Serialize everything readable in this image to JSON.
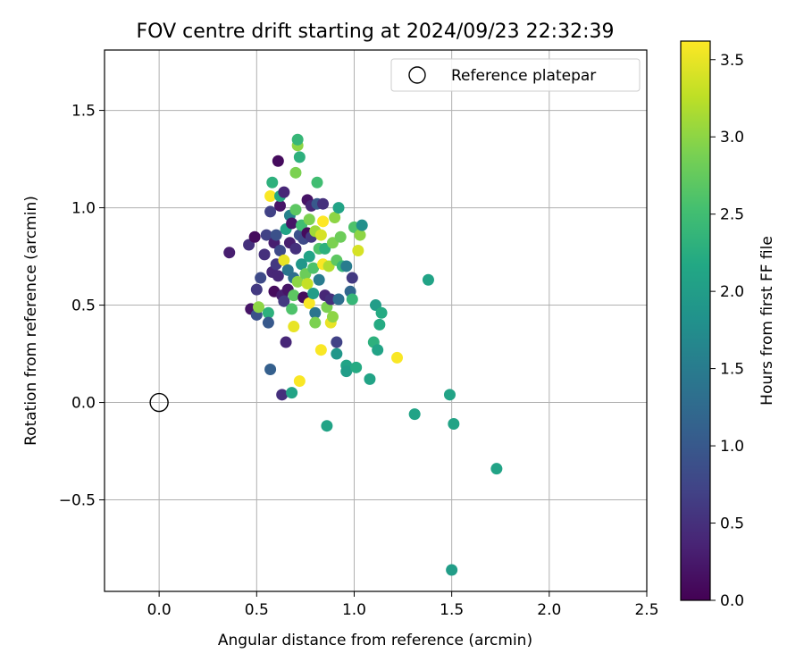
{
  "chart_data": {
    "type": "scatter",
    "title": "FOV centre drift starting at 2024/09/23 22:32:39",
    "xlabel": "Angular distance from reference (arcmin)",
    "ylabel": "Rotation from reference (arcmin)",
    "xlim": [
      -0.28,
      2.5
    ],
    "ylim": [
      -0.97,
      1.81
    ],
    "xticks": [
      "0.0",
      "0.5",
      "1.0",
      "1.5",
      "2.0",
      "2.5"
    ],
    "xtick_values": [
      0,
      0.5,
      1.0,
      1.5,
      2.0,
      2.5
    ],
    "yticks": [
      "−0.5",
      "0.0",
      "0.5",
      "1.0",
      "1.5"
    ],
    "ytick_values": [
      -0.5,
      0,
      0.5,
      1.0,
      1.5
    ],
    "grid": true,
    "legend": {
      "placement": "top-right",
      "entries": [
        "Reference platepar"
      ]
    },
    "reference_point": {
      "x": 0.0,
      "y": 0.0
    },
    "colorbar": {
      "label": "Hours from first FF file",
      "range": [
        0,
        3.62
      ],
      "ticks": [
        "0.0",
        "0.5",
        "1.0",
        "1.5",
        "2.0",
        "2.5",
        "3.0",
        "3.5"
      ],
      "tick_values": [
        0,
        0.5,
        1.0,
        1.5,
        2.0,
        2.5,
        3.0,
        3.5
      ],
      "colormap": "viridis"
    },
    "points": [
      [
        0.36,
        0.77,
        0.3
      ],
      [
        0.46,
        0.81,
        0.5
      ],
      [
        0.47,
        0.48,
        0.2
      ],
      [
        0.49,
        0.85,
        0.1
      ],
      [
        0.5,
        0.45,
        0.9
      ],
      [
        0.5,
        0.58,
        0.6
      ],
      [
        0.51,
        0.49,
        3.0
      ],
      [
        0.52,
        0.64,
        0.8
      ],
      [
        0.54,
        0.76,
        0.5
      ],
      [
        0.55,
        0.86,
        0.7
      ],
      [
        0.56,
        0.46,
        2.3
      ],
      [
        0.56,
        0.41,
        1.0
      ],
      [
        0.57,
        0.17,
        1.1
      ],
      [
        0.57,
        1.06,
        3.6
      ],
      [
        0.57,
        0.98,
        0.7
      ],
      [
        0.58,
        1.13,
        2.3
      ],
      [
        0.58,
        0.67,
        0.4
      ],
      [
        0.59,
        0.57,
        0.1
      ],
      [
        0.59,
        0.82,
        0.3
      ],
      [
        0.6,
        0.71,
        0.6
      ],
      [
        0.6,
        0.86,
        0.9
      ],
      [
        0.61,
        1.24,
        0.1
      ],
      [
        0.61,
        0.65,
        0.4
      ],
      [
        0.62,
        0.78,
        0.8
      ],
      [
        0.62,
        1.01,
        0.2
      ],
      [
        0.62,
        1.06,
        2.2
      ],
      [
        0.63,
        0.55,
        0.3
      ],
      [
        0.63,
        0.04,
        0.5
      ],
      [
        0.64,
        0.52,
        0.6
      ],
      [
        0.64,
        0.73,
        3.5
      ],
      [
        0.64,
        1.08,
        0.4
      ],
      [
        0.65,
        0.31,
        0.4
      ],
      [
        0.65,
        0.89,
        2.1
      ],
      [
        0.66,
        0.68,
        1.4
      ],
      [
        0.66,
        0.58,
        0.2
      ],
      [
        0.67,
        0.96,
        1.6
      ],
      [
        0.67,
        0.82,
        0.3
      ],
      [
        0.68,
        0.05,
        2.1
      ],
      [
        0.68,
        0.92,
        0.2
      ],
      [
        0.68,
        0.48,
        2.6
      ],
      [
        0.69,
        0.64,
        1.3
      ],
      [
        0.69,
        0.39,
        3.5
      ],
      [
        0.69,
        0.55,
        2.7
      ],
      [
        0.7,
        0.99,
        2.7
      ],
      [
        0.7,
        1.18,
        2.9
      ],
      [
        0.7,
        0.79,
        0.5
      ],
      [
        0.71,
        1.32,
        3.0
      ],
      [
        0.71,
        1.35,
        2.4
      ],
      [
        0.71,
        0.62,
        3.0
      ],
      [
        0.72,
        0.86,
        0.9
      ],
      [
        0.72,
        1.26,
        2.3
      ],
      [
        0.72,
        0.11,
        3.6
      ],
      [
        0.73,
        0.71,
        1.9
      ],
      [
        0.73,
        0.91,
        2.5
      ],
      [
        0.74,
        0.54,
        0.1
      ],
      [
        0.74,
        0.84,
        0.8
      ],
      [
        0.75,
        0.66,
        2.8
      ],
      [
        0.76,
        0.87,
        0.1
      ],
      [
        0.76,
        0.61,
        3.3
      ],
      [
        0.76,
        1.04,
        0.2
      ],
      [
        0.77,
        0.51,
        3.6
      ],
      [
        0.77,
        0.94,
        2.9
      ],
      [
        0.77,
        0.75,
        2.1
      ],
      [
        0.78,
        0.85,
        0.6
      ],
      [
        0.78,
        1.01,
        0.4
      ],
      [
        0.79,
        0.69,
        2.6
      ],
      [
        0.79,
        0.56,
        2.0
      ],
      [
        0.8,
        0.46,
        1.4
      ],
      [
        0.8,
        0.41,
        2.9
      ],
      [
        0.8,
        0.88,
        3.1
      ],
      [
        0.81,
        1.13,
        2.5
      ],
      [
        0.81,
        1.02,
        1.0
      ],
      [
        0.82,
        0.63,
        1.5
      ],
      [
        0.82,
        0.79,
        2.6
      ],
      [
        0.83,
        0.27,
        3.6
      ],
      [
        0.83,
        0.86,
        3.4
      ],
      [
        0.84,
        0.71,
        3.6
      ],
      [
        0.84,
        0.93,
        3.7
      ],
      [
        0.84,
        1.02,
        0.5
      ],
      [
        0.85,
        0.55,
        0.4
      ],
      [
        0.85,
        0.79,
        2.3
      ],
      [
        0.86,
        -0.12,
        2.1
      ],
      [
        0.86,
        0.49,
        2.9
      ],
      [
        0.87,
        0.7,
        3.2
      ],
      [
        0.88,
        0.53,
        0.5
      ],
      [
        0.88,
        0.41,
        3.5
      ],
      [
        0.89,
        0.82,
        2.9
      ],
      [
        0.89,
        0.44,
        3.0
      ],
      [
        0.9,
        0.95,
        3.0
      ],
      [
        0.91,
        0.25,
        1.9
      ],
      [
        0.91,
        0.73,
        2.7
      ],
      [
        0.91,
        0.31,
        0.7
      ],
      [
        0.92,
        1.0,
        2.1
      ],
      [
        0.92,
        0.53,
        1.3
      ],
      [
        0.93,
        0.85,
        2.8
      ],
      [
        0.94,
        0.7,
        2.4
      ],
      [
        0.96,
        0.19,
        2.1
      ],
      [
        0.96,
        0.16,
        2.0
      ],
      [
        0.96,
        0.7,
        1.5
      ],
      [
        0.98,
        0.57,
        1.2
      ],
      [
        0.99,
        0.64,
        0.6
      ],
      [
        0.99,
        0.53,
        2.4
      ],
      [
        1.0,
        0.9,
        2.6
      ],
      [
        1.01,
        0.18,
        2.2
      ],
      [
        1.02,
        0.78,
        3.4
      ],
      [
        1.03,
        0.86,
        3.0
      ],
      [
        1.04,
        0.91,
        1.8
      ],
      [
        1.08,
        0.12,
        2.1
      ],
      [
        1.1,
        0.31,
        2.3
      ],
      [
        1.11,
        0.5,
        2.0
      ],
      [
        1.12,
        0.27,
        2.1
      ],
      [
        1.13,
        0.4,
        2.2
      ],
      [
        1.14,
        0.46,
        2.2
      ],
      [
        1.22,
        0.23,
        3.6
      ],
      [
        1.31,
        -0.06,
        2.1
      ],
      [
        1.38,
        0.63,
        2.1
      ],
      [
        1.49,
        0.04,
        2.1
      ],
      [
        1.5,
        -0.86,
        2.0
      ],
      [
        1.51,
        -0.11,
        2.1
      ],
      [
        1.73,
        -0.34,
        2.1
      ]
    ]
  }
}
